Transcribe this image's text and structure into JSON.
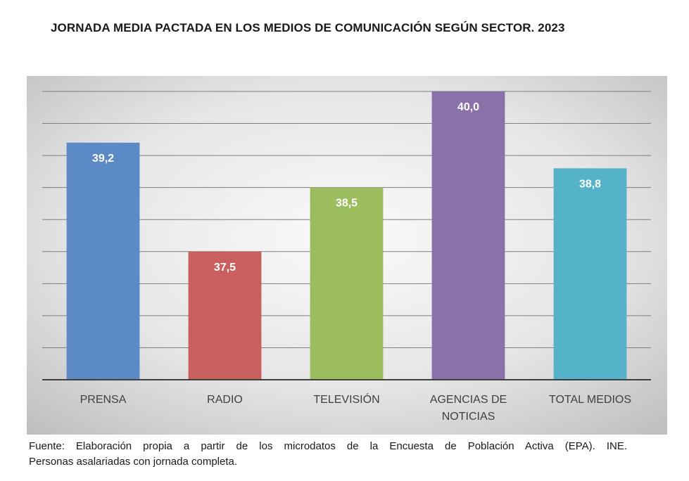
{
  "title": "JORNADA MEDIA PACTADA EN LOS MEDIOS DE COMUNICACIÓN SEGÚN SECTOR. 2023",
  "source": {
    "line1": "Fuente: Elaboración propia a partir de los microdatos de la Encuesta de Población Activa (EPA). INE.",
    "line2": "Personas asalariadas con jornada completa."
  },
  "chart_data": {
    "type": "bar",
    "categories": [
      [
        "PRENSA"
      ],
      [
        "RADIO"
      ],
      [
        "TELEVISIÓN"
      ],
      [
        "AGENCIAS DE",
        "NOTICIAS"
      ],
      [
        "TOTAL MEDIOS"
      ]
    ],
    "values": [
      39.2,
      37.5,
      38.5,
      40.0,
      38.8
    ],
    "value_labels": [
      "39,2",
      "37,5",
      "38,5",
      "40,0",
      "38,8"
    ],
    "colors": [
      "#5b8ac6",
      "#c9605d",
      "#9cbd5e",
      "#8b71a9",
      "#55b3c9"
    ],
    "title": "JORNADA MEDIA PACTADA EN LOS MEDIOS DE COMUNICACIÓN SEGÚN SECTOR. 2023",
    "xlabel": "",
    "ylabel": "",
    "ylim": [
      35.5,
      40.0
    ],
    "grid": true,
    "y_axis_labels_shown": false,
    "legend": "none"
  }
}
